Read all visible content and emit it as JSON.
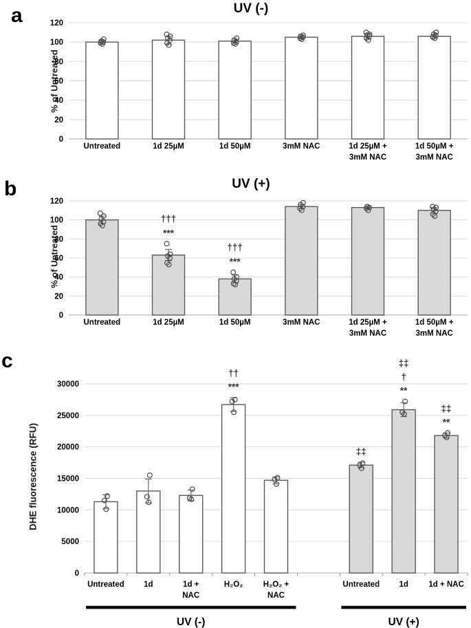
{
  "colors": {
    "background": "#ffffff",
    "bar_white": "#ffffff",
    "bar_gray": "#d9d9d9",
    "bar_border": "#5a5a5a",
    "gridline": "#d9d9d9",
    "axis_line": "#bfbfbf",
    "tick_mark": "#8c8c8c",
    "data_point_stroke": "#4a4a4a",
    "error_bar": "#737373",
    "significance_text": "#333333",
    "group_underline": "#0d0d0d",
    "text": "#000000"
  },
  "chart_data": [
    {
      "id": "a",
      "panel_label": "a",
      "type": "bar",
      "title": "UV (-)",
      "xlabel": "",
      "ylabel": "% of Untreated",
      "ylim": [
        0,
        120
      ],
      "yticks": [
        0,
        20,
        40,
        60,
        80,
        100,
        120
      ],
      "grid": true,
      "bars": [
        {
          "label_lines": [
            "Untreated"
          ],
          "value": 100,
          "err": 2,
          "points": [
            98,
            99,
            100,
            101,
            103
          ],
          "sig": [],
          "fill": "#ffffff"
        },
        {
          "label_lines": [
            "1d 25µM"
          ],
          "value": 102,
          "err": 4,
          "points": [
            97,
            99,
            102,
            104,
            106,
            108
          ],
          "sig": [],
          "fill": "#ffffff"
        },
        {
          "label_lines": [
            "1d 50µM"
          ],
          "value": 101,
          "err": 2,
          "points": [
            98,
            99,
            100,
            102,
            104
          ],
          "sig": [],
          "fill": "#ffffff"
        },
        {
          "label_lines": [
            "3mM NAC"
          ],
          "value": 105,
          "err": 1.5,
          "points": [
            103,
            104,
            105,
            106,
            107
          ],
          "sig": [],
          "fill": "#ffffff"
        },
        {
          "label_lines": [
            "1d 25µM +",
            "3mM NAC"
          ],
          "value": 106,
          "err": 3,
          "points": [
            102,
            104,
            106,
            107,
            108,
            110
          ],
          "sig": [],
          "fill": "#ffffff"
        },
        {
          "label_lines": [
            "1d 50µM +",
            "3mM NAC"
          ],
          "value": 106,
          "err": 2,
          "points": [
            104,
            105,
            107,
            108,
            110
          ],
          "sig": [],
          "fill": "#ffffff"
        }
      ]
    },
    {
      "id": "b",
      "panel_label": "b",
      "type": "bar",
      "title": "UV (+)",
      "xlabel": "",
      "ylabel": "% of Untreated",
      "ylim": [
        0,
        120
      ],
      "yticks": [
        0,
        20,
        40,
        60,
        80,
        100,
        120
      ],
      "grid": true,
      "bars": [
        {
          "label_lines": [
            "Untreated"
          ],
          "value": 100,
          "err": 4,
          "points": [
            94,
            96,
            98,
            101,
            104,
            107
          ],
          "sig": [],
          "fill": "#d9d9d9"
        },
        {
          "label_lines": [
            "1d 25µM"
          ],
          "value": 63,
          "err": 6,
          "points": [
            53,
            55,
            60,
            62,
            64,
            75
          ],
          "sig": [
            "†††",
            "***"
          ],
          "fill": "#d9d9d9"
        },
        {
          "label_lines": [
            "1d 50µM"
          ],
          "value": 38,
          "err": 4,
          "points": [
            32,
            33,
            36,
            38,
            40,
            45
          ],
          "sig": [
            "†††",
            "***"
          ],
          "fill": "#d9d9d9"
        },
        {
          "label_lines": [
            "3mM NAC"
          ],
          "value": 114,
          "err": 2,
          "points": [
            110,
            112,
            114,
            116,
            118
          ],
          "sig": [],
          "fill": "#d9d9d9"
        },
        {
          "label_lines": [
            "1d 25µM +",
            "3mM NAC"
          ],
          "value": 113,
          "err": 1.5,
          "points": [
            110,
            112,
            113,
            114
          ],
          "sig": [],
          "fill": "#d9d9d9"
        },
        {
          "label_lines": [
            "1d 50µM +",
            "3mM NAC"
          ],
          "value": 110,
          "err": 3,
          "points": [
            104,
            106,
            109,
            111,
            113,
            114
          ],
          "sig": [],
          "fill": "#d9d9d9"
        }
      ]
    },
    {
      "id": "c",
      "panel_label": "c",
      "type": "bar",
      "title": "",
      "xlabel": "",
      "ylabel": "DHE fluorescence (RFU)",
      "ylim": [
        0,
        30000
      ],
      "yticks": [
        0,
        5000,
        10000,
        15000,
        20000,
        25000,
        30000
      ],
      "grid": true,
      "bars": [
        {
          "label_lines": [
            "Untreated"
          ],
          "value": 11300,
          "err": 1100,
          "points": [
            10100,
            11500,
            12200
          ],
          "sig": [],
          "fill": "#ffffff"
        },
        {
          "label_lines": [
            "1d"
          ],
          "value": 13000,
          "err": 1900,
          "points": [
            11200,
            12100,
            15500
          ],
          "sig": [],
          "fill": "#ffffff"
        },
        {
          "label_lines": [
            "1d +",
            "NAC"
          ],
          "value": 12300,
          "err": 850,
          "points": [
            11700,
            11900,
            13300
          ],
          "sig": [],
          "fill": "#ffffff"
        },
        {
          "label_lines": [
            "H₂O₂"
          ],
          "value": 26700,
          "err": 1100,
          "points": [
            25500,
            27200,
            27500
          ],
          "sig": [
            "††",
            "***"
          ],
          "fill": "#ffffff"
        },
        {
          "label_lines": [
            "H₂O₂ +",
            "NAC"
          ],
          "value": 14700,
          "err": 550,
          "points": [
            14100,
            14800,
            15100
          ],
          "sig": [],
          "fill": "#ffffff"
        },
        {
          "label_lines": [
            "Untreated"
          ],
          "value": 17100,
          "err": 450,
          "points": [
            16600,
            17100,
            17400
          ],
          "sig": [
            "‡‡"
          ],
          "fill": "#d9d9d9"
        },
        {
          "label_lines": [
            "1d"
          ],
          "value": 25900,
          "err": 1100,
          "points": [
            25200,
            25500,
            27200
          ],
          "sig": [
            "‡‡",
            "†",
            "**"
          ],
          "fill": "#d9d9d9"
        },
        {
          "label_lines": [
            "1d + NAC"
          ],
          "value": 21800,
          "err": 400,
          "points": [
            21500,
            21800,
            22200
          ],
          "sig": [
            "‡‡",
            "**"
          ],
          "fill": "#d9d9d9"
        }
      ],
      "groups": [
        {
          "label": "UV (-)",
          "bars": [
            0,
            4
          ]
        },
        {
          "label": "UV (+)",
          "bars": [
            5,
            7
          ]
        }
      ]
    }
  ]
}
